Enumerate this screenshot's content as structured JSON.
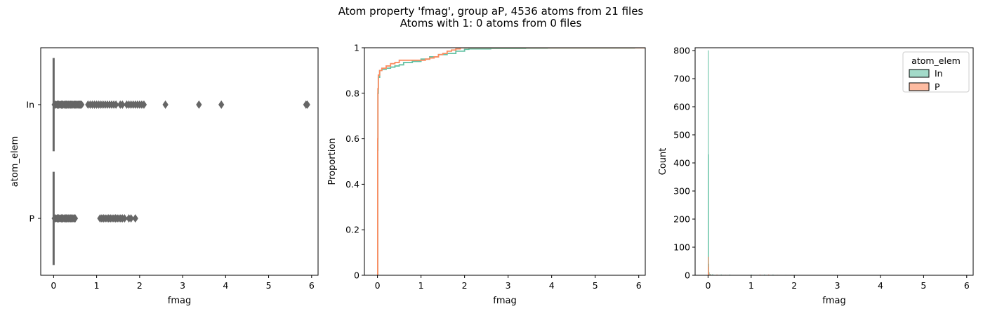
{
  "figure": {
    "title_line1": "Atom property 'fmag', group aP, 4536 atoms from 21 files",
    "title_line2": "Atoms with 1: 0 atoms from 0 files"
  },
  "chart_data": [
    {
      "type": "boxplot",
      "xlabel": "fmag",
      "ylabel": "atom_elem",
      "xlim": [
        -0.3,
        6.15
      ],
      "x_ticks": [
        0,
        1,
        2,
        3,
        4,
        5,
        6
      ],
      "categories": [
        "In",
        "P"
      ],
      "box_color": "#666666",
      "series": [
        {
          "name": "In",
          "whisker": [
            0.0,
            0.0
          ],
          "outliers": [
            0.02,
            0.05,
            0.08,
            0.1,
            0.12,
            0.15,
            0.18,
            0.2,
            0.22,
            0.25,
            0.28,
            0.3,
            0.32,
            0.35,
            0.38,
            0.4,
            0.42,
            0.45,
            0.48,
            0.5,
            0.52,
            0.55,
            0.58,
            0.6,
            0.62,
            0.65,
            0.8,
            0.85,
            0.9,
            0.95,
            1.0,
            1.05,
            1.1,
            1.15,
            1.2,
            1.25,
            1.3,
            1.35,
            1.4,
            1.45,
            1.55,
            1.6,
            1.7,
            1.75,
            1.8,
            1.85,
            1.9,
            1.95,
            2.0,
            2.05,
            2.1,
            2.6,
            3.38,
            3.9,
            5.87,
            5.9
          ]
        },
        {
          "name": "P",
          "whisker": [
            0.0,
            0.0
          ],
          "outliers": [
            0.02,
            0.05,
            0.08,
            0.1,
            0.12,
            0.15,
            0.18,
            0.2,
            0.22,
            0.25,
            0.28,
            0.3,
            0.32,
            0.35,
            0.38,
            0.4,
            0.42,
            0.45,
            0.48,
            0.5,
            1.08,
            1.12,
            1.16,
            1.2,
            1.24,
            1.28,
            1.32,
            1.36,
            1.4,
            1.44,
            1.48,
            1.52,
            1.56,
            1.6,
            1.65,
            1.75,
            1.8,
            1.9
          ]
        }
      ]
    },
    {
      "type": "line",
      "subtype": "ecdf",
      "xlabel": "fmag",
      "ylabel": "Proportion",
      "xlim": [
        -0.3,
        6.15
      ],
      "ylim": [
        0,
        1
      ],
      "x_ticks": [
        0,
        1,
        2,
        3,
        4,
        5,
        6
      ],
      "y_ticks": [
        0.0,
        0.2,
        0.4,
        0.6,
        0.8,
        1.0
      ],
      "series": [
        {
          "name": "In",
          "color": "#66c2a5",
          "x": [
            0,
            0.005,
            0.01,
            0.02,
            0.05,
            0.1,
            0.2,
            0.3,
            0.4,
            0.5,
            0.6,
            0.8,
            1.0,
            1.2,
            1.4,
            1.6,
            1.8,
            2.0,
            2.1,
            2.6,
            3.4,
            3.9,
            5.9
          ],
          "y": [
            0,
            0.55,
            0.8,
            0.87,
            0.9,
            0.905,
            0.91,
            0.915,
            0.92,
            0.925,
            0.935,
            0.94,
            0.95,
            0.96,
            0.97,
            0.975,
            0.985,
            0.993,
            0.995,
            0.997,
            0.998,
            0.999,
            1.0
          ]
        },
        {
          "name": "P",
          "color": "#fc8d62",
          "x": [
            0,
            0.005,
            0.01,
            0.02,
            0.05,
            0.1,
            0.2,
            0.3,
            0.4,
            0.5,
            0.9,
            1.1,
            1.2,
            1.3,
            1.4,
            1.5,
            1.6,
            1.7,
            1.8,
            1.9
          ],
          "y": [
            0,
            0.6,
            0.82,
            0.88,
            0.9,
            0.91,
            0.92,
            0.93,
            0.935,
            0.945,
            0.945,
            0.95,
            0.955,
            0.96,
            0.97,
            0.975,
            0.985,
            0.99,
            0.995,
            1.0
          ]
        }
      ]
    },
    {
      "type": "bar",
      "subtype": "histogram",
      "xlabel": "fmag",
      "ylabel": "Count",
      "xlim": [
        -0.3,
        6.15
      ],
      "ylim": [
        0,
        810
      ],
      "x_ticks": [
        0,
        1,
        2,
        3,
        4,
        5,
        6
      ],
      "y_ticks": [
        0,
        100,
        200,
        300,
        400,
        500,
        600,
        700,
        800
      ],
      "legend": {
        "title": "atom_elem",
        "placement": "top-right"
      },
      "series": [
        {
          "name": "In",
          "color": "#66c2a5",
          "bins": [
            [
              0.0,
              800
            ],
            [
              0.005,
              430
            ],
            [
              0.01,
              40
            ],
            [
              0.02,
              10
            ],
            [
              0.05,
              4
            ],
            [
              0.1,
              3
            ],
            [
              0.3,
              2
            ],
            [
              0.5,
              2
            ],
            [
              1.0,
              2
            ],
            [
              1.3,
              2
            ],
            [
              1.5,
              2
            ],
            [
              1.8,
              1
            ],
            [
              2.0,
              1
            ]
          ]
        },
        {
          "name": "P",
          "color": "#fc8d62",
          "bins": [
            [
              0.0,
              65
            ],
            [
              0.005,
              30
            ],
            [
              0.01,
              8
            ],
            [
              0.02,
              4
            ],
            [
              0.05,
              2
            ],
            [
              0.2,
              2
            ],
            [
              0.4,
              1
            ],
            [
              1.2,
              2
            ],
            [
              1.4,
              2
            ],
            [
              1.6,
              1
            ]
          ]
        }
      ]
    }
  ]
}
